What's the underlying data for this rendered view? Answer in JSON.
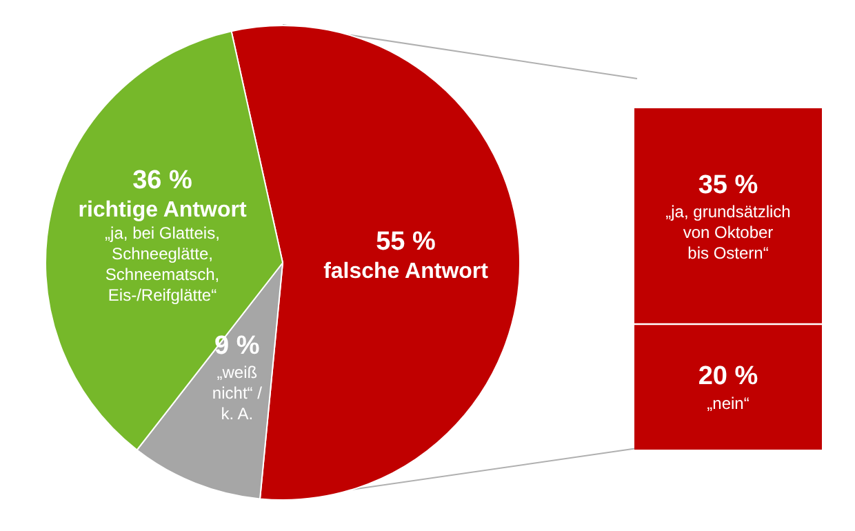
{
  "chart_data": [
    {
      "type": "pie",
      "categories": [
        "falsche Antwort",
        "„weiß\nnicht“ /\nk. A.",
        "richtige Antwort\n„ja, bei Glatteis,\nSchneeglätte,\nSchneematsch,\nEis-/Reifglätte“"
      ],
      "values": [
        55,
        9,
        36
      ],
      "colors": [
        "#c00000",
        "#a6a6a6",
        "#76b82a"
      ],
      "value_labels": [
        "55 %",
        "9 %",
        "36 %"
      ],
      "legend": false
    },
    {
      "type": "bar",
      "stacked": true,
      "categories": [
        null
      ],
      "tick_labels": false,
      "legend": false,
      "series": [
        {
          "name": "„nein“",
          "color": "#c00000",
          "values": [
            20
          ],
          "value_labels": [
            "20 %"
          ]
        },
        {
          "name": "„ja, grundsätzlich\nvon Oktober\nbis Ostern“",
          "color": "#c00000",
          "values": [
            35
          ],
          "value_labels": [
            "35 %"
          ]
        }
      ]
    }
  ]
}
